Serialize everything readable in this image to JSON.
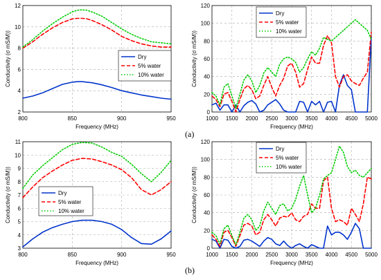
{
  "figure": {
    "panel_labels": [
      "(a)",
      "(b)"
    ]
  },
  "chart_data": [
    {
      "id": "a-left",
      "type": "line",
      "xlabel": "Frequency (MHz)",
      "ylabel": "Conductivity (σ mS/M))",
      "xlim": [
        800,
        950
      ],
      "ylim": [
        2,
        12
      ],
      "xticks": [
        800,
        850,
        900,
        950
      ],
      "yticks": [
        2,
        4,
        6,
        8,
        10,
        12
      ],
      "grid": true,
      "legend": "center-right",
      "x": [
        800,
        810,
        820,
        830,
        840,
        850,
        855,
        860,
        865,
        870,
        880,
        890,
        900,
        910,
        920,
        930,
        940,
        950
      ],
      "series": [
        {
          "name": "Dry",
          "color": "#0033cc",
          "style": "solid",
          "values": [
            3.3,
            3.5,
            3.8,
            4.2,
            4.6,
            4.8,
            4.85,
            4.85,
            4.8,
            4.75,
            4.55,
            4.3,
            4.0,
            3.8,
            3.6,
            3.45,
            3.3,
            3.2
          ]
        },
        {
          "name": "5% water",
          "color": "#ff0000",
          "style": "dashed",
          "values": [
            8.0,
            8.6,
            9.3,
            9.9,
            10.4,
            10.75,
            10.8,
            10.8,
            10.75,
            10.6,
            10.2,
            9.7,
            9.1,
            8.7,
            8.4,
            8.2,
            8.1,
            8.1
          ]
        },
        {
          "name": "10% water",
          "color": "#00cc00",
          "style": "dotted",
          "values": [
            8.1,
            8.8,
            9.6,
            10.3,
            10.9,
            11.4,
            11.55,
            11.6,
            11.55,
            11.4,
            11.0,
            10.4,
            9.8,
            9.3,
            8.9,
            8.6,
            8.5,
            8.4
          ]
        }
      ]
    },
    {
      "id": "a-right",
      "type": "line",
      "xlabel": "Frequency (MHz)",
      "ylabel": "Conductivity (σ mS/M))",
      "xlim": [
        1000,
        5000
      ],
      "ylim": [
        0,
        120
      ],
      "xticks": [
        1000,
        1500,
        2000,
        2500,
        3000,
        3500,
        4000,
        4500,
        5000
      ],
      "yticks": [
        0,
        20,
        40,
        60,
        80,
        100,
        120
      ],
      "grid": true,
      "legend": "top-left",
      "x": [
        1000,
        1100,
        1200,
        1300,
        1400,
        1500,
        1600,
        1700,
        1800,
        1900,
        2000,
        2100,
        2200,
        2300,
        2400,
        2500,
        2600,
        2700,
        2800,
        2900,
        3000,
        3100,
        3200,
        3300,
        3400,
        3500,
        3600,
        3700,
        3800,
        3900,
        4000,
        4100,
        4200,
        4300,
        4400,
        4500,
        4600,
        4700,
        4800,
        4900,
        5000
      ],
      "series": [
        {
          "name": "Dry",
          "color": "#0033cc",
          "style": "solid",
          "values": [
            8,
            10,
            2,
            8,
            8,
            0,
            8,
            0,
            7,
            11,
            13,
            9,
            0,
            2,
            8,
            11,
            14,
            9,
            2,
            0,
            0,
            0,
            12,
            11,
            0,
            12,
            8,
            12,
            0,
            11,
            12,
            0,
            30,
            42,
            30,
            25,
            0,
            0,
            0,
            0,
            85
          ]
        },
        {
          "name": "5% water",
          "color": "#ff0000",
          "style": "dashed",
          "values": [
            18,
            14,
            6,
            20,
            22,
            12,
            0,
            14,
            26,
            30,
            25,
            15,
            18,
            30,
            40,
            28,
            18,
            30,
            38,
            52,
            55,
            45,
            28,
            32,
            48,
            62,
            55,
            55,
            75,
            86,
            78,
            40,
            28,
            40,
            42,
            35,
            32,
            30,
            38,
            45,
            90
          ]
        },
        {
          "name": "10% water",
          "color": "#00cc00",
          "style": "dotted",
          "values": [
            22,
            18,
            8,
            28,
            32,
            18,
            4,
            20,
            36,
            42,
            35,
            22,
            30,
            44,
            50,
            45,
            40,
            54,
            60,
            62,
            60,
            56,
            45,
            50,
            60,
            68,
            64,
            72,
            84,
            82,
            80,
            84,
            88,
            92,
            96,
            100,
            104,
            100,
            96,
            92,
            82
          ]
        }
      ]
    },
    {
      "id": "b-left",
      "type": "line",
      "xlabel": "Frequency (MHz)",
      "ylabel": "Conductivity (σ mS/M))",
      "xlim": [
        800,
        950
      ],
      "ylim": [
        3,
        11
      ],
      "xticks": [
        800,
        850,
        900,
        950
      ],
      "yticks": [
        3,
        4,
        5,
        6,
        7,
        8,
        9,
        10,
        11
      ],
      "grid": true,
      "legend": "center-left",
      "x": [
        800,
        810,
        820,
        830,
        840,
        850,
        860,
        870,
        880,
        890,
        900,
        910,
        920,
        930,
        940,
        950
      ],
      "series": [
        {
          "name": "Dry",
          "color": "#0033cc",
          "style": "solid",
          "values": [
            3.1,
            3.7,
            4.2,
            4.55,
            4.8,
            5.0,
            5.1,
            5.1,
            5.0,
            4.8,
            4.4,
            3.8,
            3.35,
            3.3,
            3.7,
            4.3
          ]
        },
        {
          "name": "5% water",
          "color": "#ff0000",
          "style": "dashed",
          "values": [
            6.8,
            7.6,
            8.3,
            8.8,
            9.25,
            9.6,
            9.75,
            9.7,
            9.5,
            9.25,
            8.9,
            8.3,
            7.4,
            7.0,
            7.4,
            8.0
          ]
        },
        {
          "name": "10% water",
          "color": "#00cc00",
          "style": "dotted",
          "values": [
            7.5,
            8.5,
            9.2,
            9.8,
            10.4,
            10.8,
            10.95,
            10.9,
            10.6,
            10.2,
            9.9,
            9.3,
            8.6,
            8.0,
            8.7,
            9.6
          ]
        }
      ]
    },
    {
      "id": "b-right",
      "type": "line",
      "xlabel": "Frequency (MHz)",
      "ylabel": "Conductivity (σ mS/M))",
      "xlim": [
        1000,
        5000
      ],
      "ylim": [
        0,
        120
      ],
      "xticks": [
        1000,
        1500,
        2000,
        2500,
        3000,
        3500,
        4000,
        4500,
        5000
      ],
      "yticks": [
        0,
        20,
        40,
        60,
        80,
        100,
        120
      ],
      "grid": true,
      "legend": "top-left",
      "x": [
        1000,
        1100,
        1200,
        1300,
        1400,
        1500,
        1600,
        1700,
        1800,
        1900,
        2000,
        2100,
        2200,
        2300,
        2400,
        2500,
        2600,
        2700,
        2800,
        2900,
        3000,
        3100,
        3200,
        3300,
        3400,
        3500,
        3600,
        3700,
        3800,
        3900,
        4000,
        4100,
        4200,
        4300,
        4400,
        4500,
        4600,
        4700,
        4800,
        4900,
        5000
      ],
      "series": [
        {
          "name": "Dry",
          "color": "#0033cc",
          "style": "solid",
          "values": [
            10,
            8,
            0,
            10,
            9,
            2,
            0,
            2,
            9,
            10,
            8,
            5,
            2,
            8,
            12,
            10,
            5,
            3,
            8,
            3,
            0,
            3,
            5,
            2,
            0,
            4,
            2,
            0,
            0,
            25,
            15,
            18,
            18,
            15,
            10,
            18,
            28,
            22,
            0,
            0,
            0
          ]
        },
        {
          "name": "5% water",
          "color": "#ff0000",
          "style": "dashed",
          "values": [
            15,
            10,
            2,
            18,
            20,
            12,
            2,
            14,
            26,
            28,
            25,
            15,
            18,
            32,
            38,
            32,
            25,
            34,
            36,
            35,
            40,
            32,
            30,
            36,
            38,
            50,
            45,
            45,
            76,
            80,
            45,
            30,
            32,
            30,
            26,
            45,
            38,
            30,
            50,
            80,
            78
          ]
        },
        {
          "name": "10% water",
          "color": "#00cc00",
          "style": "dotted",
          "values": [
            18,
            14,
            5,
            22,
            26,
            14,
            4,
            18,
            34,
            38,
            32,
            20,
            25,
            42,
            52,
            45,
            38,
            48,
            50,
            42,
            45,
            55,
            70,
            82,
            60,
            40,
            45,
            60,
            78,
            82,
            85,
            100,
            115,
            108,
            92,
            85,
            88,
            82,
            80,
            85,
            90
          ]
        }
      ]
    }
  ]
}
